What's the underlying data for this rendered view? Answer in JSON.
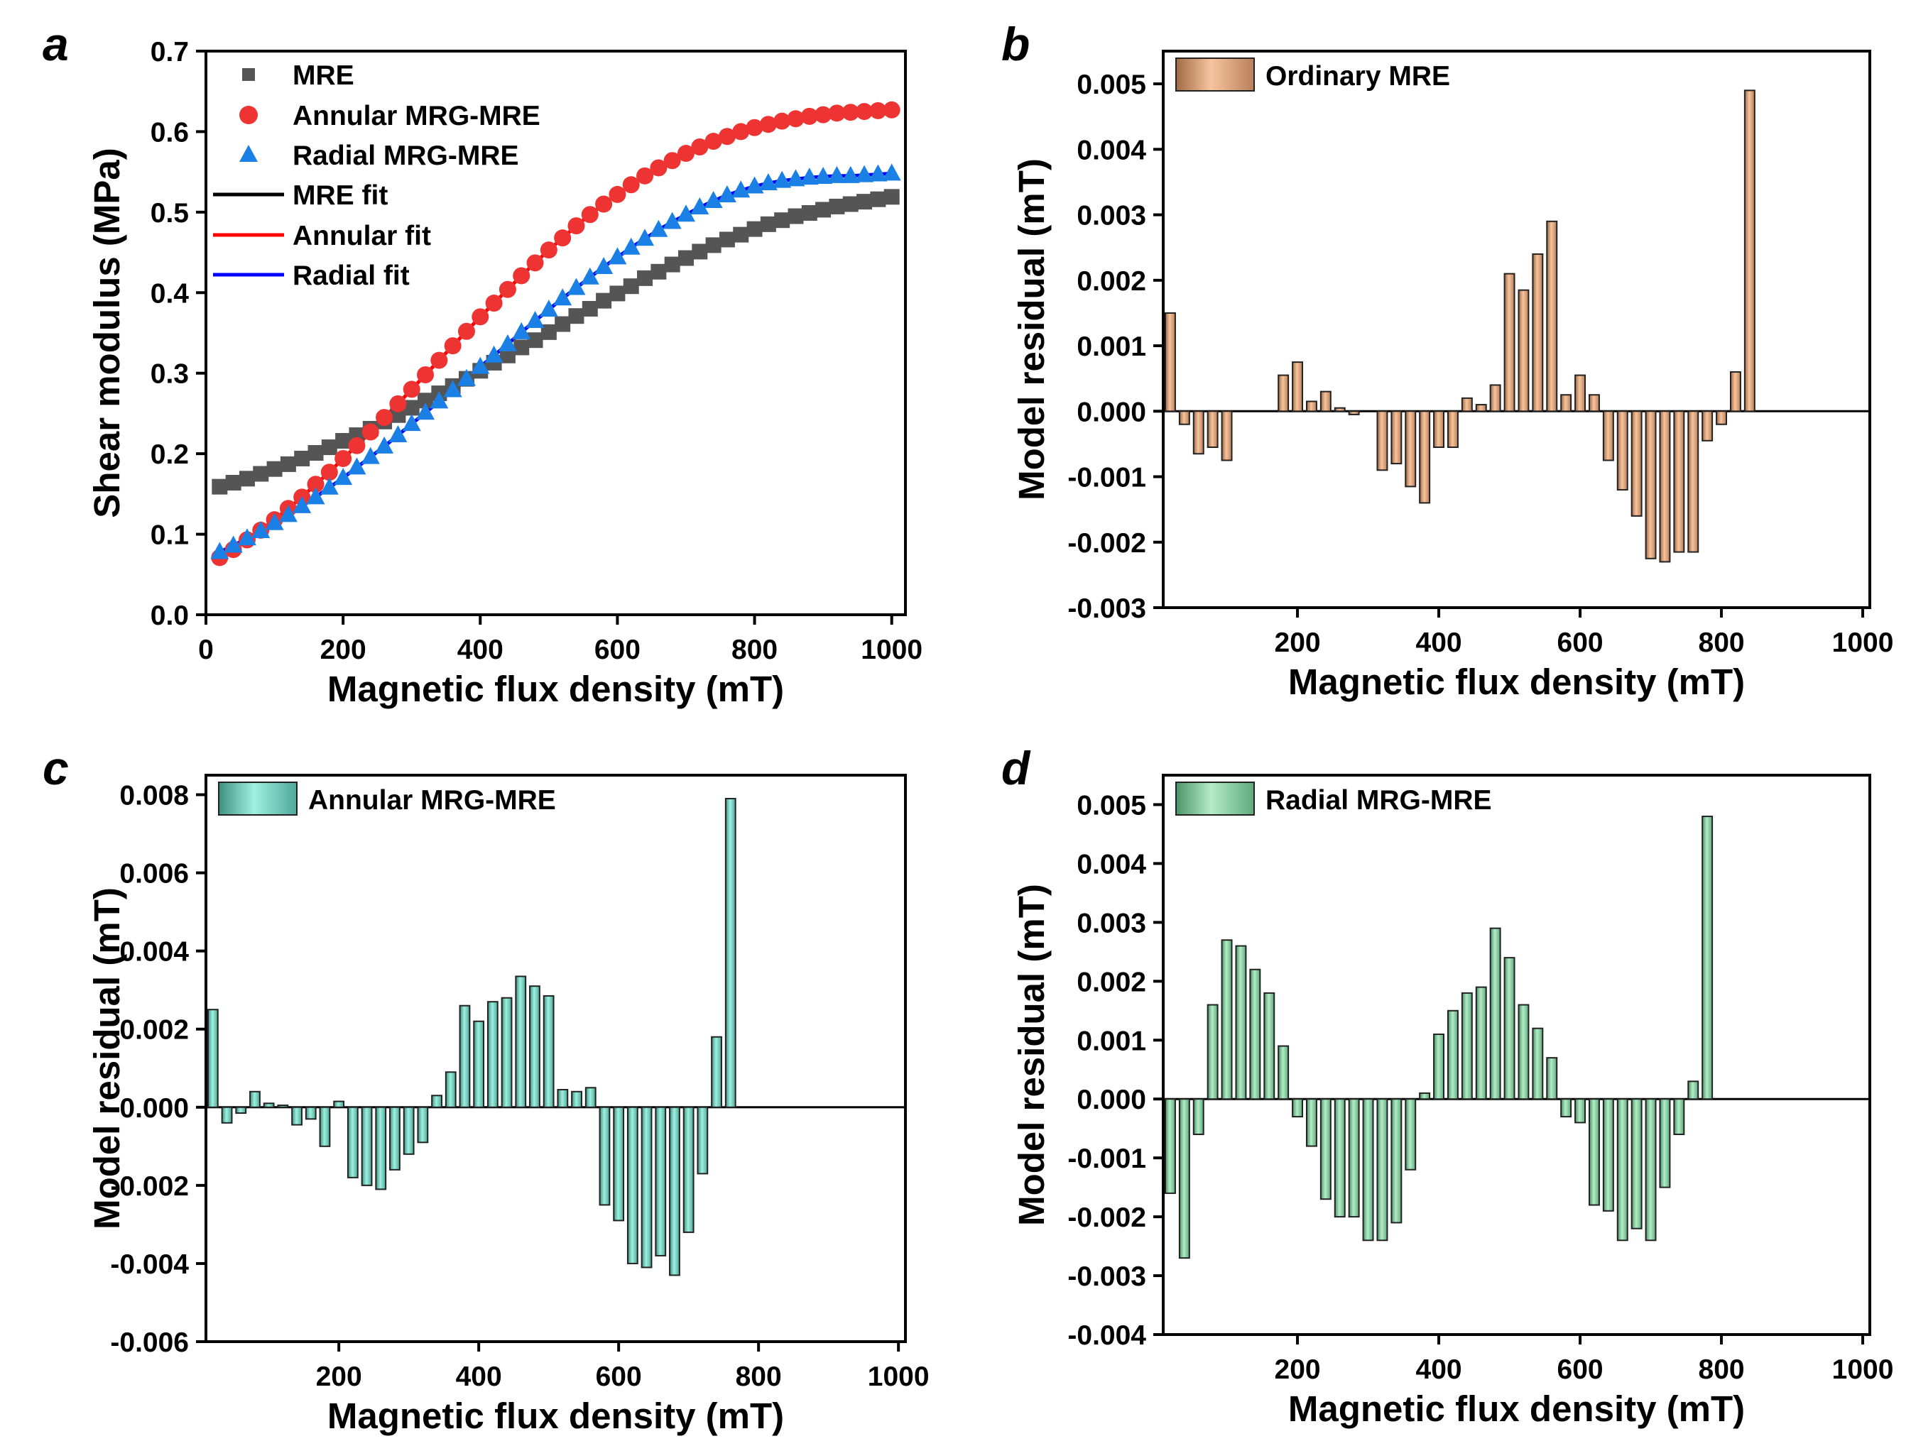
{
  "chart_data": [
    {
      "panel": "a",
      "type": "scatter",
      "xlabel": "Magnetic flux density (mT)",
      "ylabel": "Shear modulus (MPa)",
      "xlim": [
        0,
        1020
      ],
      "ylim": [
        0.0,
        0.7
      ],
      "xticks": [
        0,
        200,
        400,
        600,
        800,
        1000
      ],
      "yticks": [
        0.0,
        0.1,
        0.2,
        0.3,
        0.4,
        0.5,
        0.6,
        0.7
      ],
      "ytick_labels": [
        "0.0",
        "0.1",
        "0.2",
        "0.3",
        "0.4",
        "0.5",
        "0.6",
        "0.7"
      ],
      "legend_position": "top-left",
      "colors": {
        "MRE": "#555555",
        "Annular": "#ee3333",
        "Radial": "#1a80e6",
        "MRE fit": "#000000",
        "Annular fit": "#ff0000",
        "Radial fit": "#0000ff"
      },
      "x": [
        20,
        40,
        60,
        80,
        100,
        120,
        140,
        160,
        180,
        200,
        220,
        240,
        260,
        280,
        300,
        320,
        340,
        360,
        380,
        400,
        420,
        440,
        460,
        480,
        500,
        520,
        540,
        560,
        580,
        600,
        620,
        640,
        660,
        680,
        700,
        720,
        740,
        760,
        780,
        800,
        820,
        840,
        860,
        880,
        900,
        920,
        940,
        960,
        980,
        1000
      ],
      "series": [
        {
          "name": "MRE",
          "marker": "square",
          "values": [
            0.159,
            0.164,
            0.169,
            0.175,
            0.181,
            0.187,
            0.194,
            0.201,
            0.208,
            0.216,
            0.223,
            0.231,
            0.24,
            0.248,
            0.257,
            0.266,
            0.275,
            0.284,
            0.293,
            0.303,
            0.313,
            0.322,
            0.332,
            0.341,
            0.351,
            0.361,
            0.371,
            0.38,
            0.39,
            0.399,
            0.408,
            0.418,
            0.426,
            0.435,
            0.443,
            0.451,
            0.459,
            0.466,
            0.472,
            0.479,
            0.485,
            0.49,
            0.495,
            0.499,
            0.503,
            0.507,
            0.51,
            0.513,
            0.516,
            0.519
          ]
        },
        {
          "name": "Annular MRG-MRE",
          "marker": "circle",
          "values": [
            0.071,
            0.081,
            0.093,
            0.105,
            0.118,
            0.132,
            0.146,
            0.162,
            0.177,
            0.194,
            0.21,
            0.227,
            0.245,
            0.262,
            0.28,
            0.298,
            0.316,
            0.334,
            0.352,
            0.37,
            0.387,
            0.404,
            0.421,
            0.437,
            0.453,
            0.468,
            0.483,
            0.497,
            0.51,
            0.522,
            0.534,
            0.545,
            0.555,
            0.564,
            0.573,
            0.581,
            0.588,
            0.594,
            0.6,
            0.605,
            0.609,
            0.613,
            0.616,
            0.619,
            0.621,
            0.623,
            0.624,
            0.625,
            0.626,
            0.627
          ]
        },
        {
          "name": "Radial MRG-MRE",
          "marker": "triangle",
          "values": [
            0.078,
            0.086,
            0.095,
            0.104,
            0.114,
            0.124,
            0.135,
            0.146,
            0.158,
            0.17,
            0.183,
            0.196,
            0.209,
            0.223,
            0.237,
            0.251,
            0.265,
            0.279,
            0.293,
            0.308,
            0.322,
            0.336,
            0.351,
            0.365,
            0.379,
            0.393,
            0.406,
            0.419,
            0.432,
            0.444,
            0.456,
            0.467,
            0.478,
            0.488,
            0.497,
            0.506,
            0.514,
            0.521,
            0.527,
            0.532,
            0.536,
            0.539,
            0.541,
            0.543,
            0.544,
            0.545,
            0.545,
            0.546,
            0.547,
            0.548
          ]
        }
      ],
      "fits": [
        {
          "name": "MRE fit",
          "values": [
            0.159,
            0.164,
            0.169,
            0.175,
            0.181,
            0.187,
            0.194,
            0.201,
            0.208,
            0.216,
            0.223,
            0.231,
            0.24,
            0.248,
            0.257,
            0.266,
            0.275,
            0.284,
            0.293,
            0.303,
            0.313,
            0.322,
            0.332,
            0.341,
            0.351,
            0.361,
            0.371,
            0.38,
            0.39,
            0.399,
            0.408,
            0.418,
            0.426,
            0.435,
            0.443,
            0.451,
            0.459,
            0.466,
            0.472,
            0.479,
            0.485,
            0.49,
            0.495,
            0.499,
            0.503,
            0.507,
            0.51,
            0.513,
            0.516,
            0.519
          ]
        },
        {
          "name": "Annular fit",
          "values": [
            0.071,
            0.081,
            0.093,
            0.105,
            0.118,
            0.132,
            0.146,
            0.162,
            0.177,
            0.194,
            0.21,
            0.227,
            0.245,
            0.262,
            0.28,
            0.298,
            0.316,
            0.334,
            0.352,
            0.37,
            0.387,
            0.404,
            0.421,
            0.437,
            0.453,
            0.468,
            0.483,
            0.497,
            0.51,
            0.522,
            0.534,
            0.545,
            0.555,
            0.564,
            0.573,
            0.581,
            0.588,
            0.594,
            0.6,
            0.605,
            0.609,
            0.613,
            0.616,
            0.619,
            0.621,
            0.623,
            0.624,
            0.625,
            0.626,
            0.627
          ]
        },
        {
          "name": "Radial fit",
          "values": [
            0.078,
            0.086,
            0.095,
            0.104,
            0.114,
            0.124,
            0.135,
            0.146,
            0.158,
            0.17,
            0.183,
            0.196,
            0.209,
            0.223,
            0.237,
            0.251,
            0.265,
            0.279,
            0.293,
            0.308,
            0.322,
            0.336,
            0.351,
            0.365,
            0.379,
            0.393,
            0.406,
            0.419,
            0.432,
            0.444,
            0.456,
            0.467,
            0.478,
            0.488,
            0.497,
            0.506,
            0.514,
            0.521,
            0.527,
            0.532,
            0.536,
            0.539,
            0.541,
            0.543,
            0.544,
            0.545,
            0.545,
            0.546,
            0.547,
            0.548
          ]
        }
      ],
      "legend": [
        "MRE",
        "Annular MRG-MRE",
        "Radial MRG-MRE",
        "MRE fit",
        "Annular fit",
        "Radial fit"
      ]
    },
    {
      "panel": "b",
      "type": "bar",
      "xlabel": "Magnetic flux density (mT)",
      "ylabel": "Model residual (mT)",
      "xlim": [
        10,
        1010
      ],
      "ylim": [
        -0.003,
        0.0055
      ],
      "xticks": [
        200,
        400,
        600,
        800,
        1000
      ],
      "yticks": [
        -0.003,
        -0.002,
        -0.001,
        0.0,
        0.001,
        0.002,
        0.003,
        0.004,
        0.005
      ],
      "ytick_labels": [
        "-0.003",
        "-0.002",
        "-0.001",
        "0.000",
        "0.001",
        "0.002",
        "0.003",
        "0.004",
        "0.005"
      ],
      "legend_position": "top-left",
      "color": "#e8a878",
      "x": [
        20,
        40,
        60,
        80,
        100,
        120,
        140,
        160,
        180,
        200,
        220,
        240,
        260,
        280,
        300,
        320,
        340,
        360,
        380,
        400,
        420,
        440,
        460,
        480,
        500,
        520,
        540,
        560,
        580,
        600,
        620,
        640,
        660,
        680,
        700,
        720,
        740,
        760,
        780,
        800,
        820,
        840,
        860,
        880,
        900,
        920,
        940,
        960,
        980,
        1000
      ],
      "series": [
        {
          "name": "Ordinary MRE",
          "values": [
            0.0015,
            -0.0002,
            -0.00065,
            -0.00055,
            -0.00075,
            0.0,
            0.0,
            0.0,
            0.00055,
            0.00075,
            0.00015,
            0.0003,
            5e-05,
            -5e-05,
            0.0,
            -0.0009,
            -0.0008,
            -0.00115,
            -0.0014,
            -0.00055,
            -0.00055,
            0.0002,
            0.0001,
            0.0004,
            0.0021,
            0.00185,
            0.0024,
            0.0029,
            0.00025,
            0.00055,
            0.00025,
            -0.00075,
            -0.0012,
            -0.0016,
            -0.00225,
            -0.0023,
            -0.00215,
            -0.00215,
            -0.00045,
            -0.0002,
            0.0006,
            0.0049,
            0,
            0,
            0,
            0,
            0,
            0,
            0,
            0
          ]
        }
      ]
    },
    {
      "panel": "c",
      "type": "bar",
      "xlabel": "Magnetic flux density (mT)",
      "ylabel": "Model residual (mT)",
      "xlim": [
        10,
        1010
      ],
      "ylim": [
        -0.006,
        0.0085
      ],
      "xticks": [
        200,
        400,
        600,
        800,
        1000
      ],
      "yticks": [
        -0.006,
        -0.004,
        -0.002,
        0.0,
        0.002,
        0.004,
        0.006,
        0.008
      ],
      "ytick_labels": [
        "-0.006",
        "-0.004",
        "-0.002",
        "0.000",
        "0.002",
        "0.004",
        "0.006",
        "0.008"
      ],
      "legend_position": "top-left",
      "color": "#7dd8c6",
      "x": [
        20,
        40,
        60,
        80,
        100,
        120,
        140,
        160,
        180,
        200,
        220,
        240,
        260,
        280,
        300,
        320,
        340,
        360,
        380,
        400,
        420,
        440,
        460,
        480,
        500,
        520,
        540,
        560,
        580,
        600,
        620,
        640,
        660,
        680,
        700,
        720,
        740,
        760,
        780,
        800,
        820,
        840,
        860,
        880,
        900,
        920,
        940,
        960,
        980,
        1000
      ],
      "series": [
        {
          "name": "Annular MRG-MRE",
          "values": [
            0.0025,
            -0.0004,
            -0.00015,
            0.0004,
            0.0001,
            5e-05,
            -0.00045,
            -0.0003,
            -0.001,
            0.00015,
            -0.0018,
            -0.002,
            -0.0021,
            -0.0016,
            -0.0012,
            -0.0009,
            0.0003,
            0.0009,
            0.0026,
            0.0022,
            0.0027,
            0.0028,
            0.00335,
            0.0031,
            0.00285,
            0.00045,
            0.0004,
            0.0005,
            -0.0025,
            -0.0029,
            -0.004,
            -0.0041,
            -0.0038,
            -0.0043,
            -0.0032,
            -0.0017,
            0.0018,
            0.0079,
            0,
            0,
            0,
            0,
            0,
            0,
            0,
            0,
            0,
            0,
            0,
            0
          ]
        }
      ]
    },
    {
      "panel": "d",
      "type": "bar",
      "xlabel": "Magnetic flux density (mT)",
      "ylabel": "Model residual (mT)",
      "xlim": [
        10,
        1010
      ],
      "ylim": [
        -0.004,
        0.0055
      ],
      "xticks": [
        200,
        400,
        600,
        800,
        1000
      ],
      "yticks": [
        -0.004,
        -0.003,
        -0.002,
        -0.001,
        0.0,
        0.001,
        0.002,
        0.003,
        0.004,
        0.005
      ],
      "ytick_labels": [
        "-0.004",
        "-0.003",
        "-0.002",
        "-0.001",
        "0.000",
        "0.001",
        "0.002",
        "0.003",
        "0.004",
        "0.005"
      ],
      "legend_position": "top-left",
      "color": "#88d4a4",
      "x": [
        20,
        40,
        60,
        80,
        100,
        120,
        140,
        160,
        180,
        200,
        220,
        240,
        260,
        280,
        300,
        320,
        340,
        360,
        380,
        400,
        420,
        440,
        460,
        480,
        500,
        520,
        540,
        560,
        580,
        600,
        620,
        640,
        660,
        680,
        700,
        720,
        740,
        760,
        780,
        800,
        820,
        840,
        860,
        880,
        900,
        920,
        940,
        960,
        980,
        1000
      ],
      "series": [
        {
          "name": "Radial MRG-MRE",
          "values": [
            -0.0016,
            -0.0027,
            -0.0006,
            0.0016,
            0.0027,
            0.0026,
            0.0022,
            0.0018,
            0.0009,
            -0.0003,
            -0.0008,
            -0.0017,
            -0.002,
            -0.002,
            -0.0024,
            -0.0024,
            -0.0021,
            -0.0012,
            0.0001,
            0.0011,
            0.0015,
            0.0018,
            0.0019,
            0.0029,
            0.0024,
            0.0016,
            0.0012,
            0.0007,
            -0.0003,
            -0.0004,
            -0.0018,
            -0.0019,
            -0.0024,
            -0.0022,
            -0.0024,
            -0.0015,
            -0.0006,
            0.0003,
            0.0048,
            0,
            0,
            0,
            0,
            0,
            0,
            0,
            0,
            0,
            0,
            0
          ]
        }
      ]
    }
  ]
}
